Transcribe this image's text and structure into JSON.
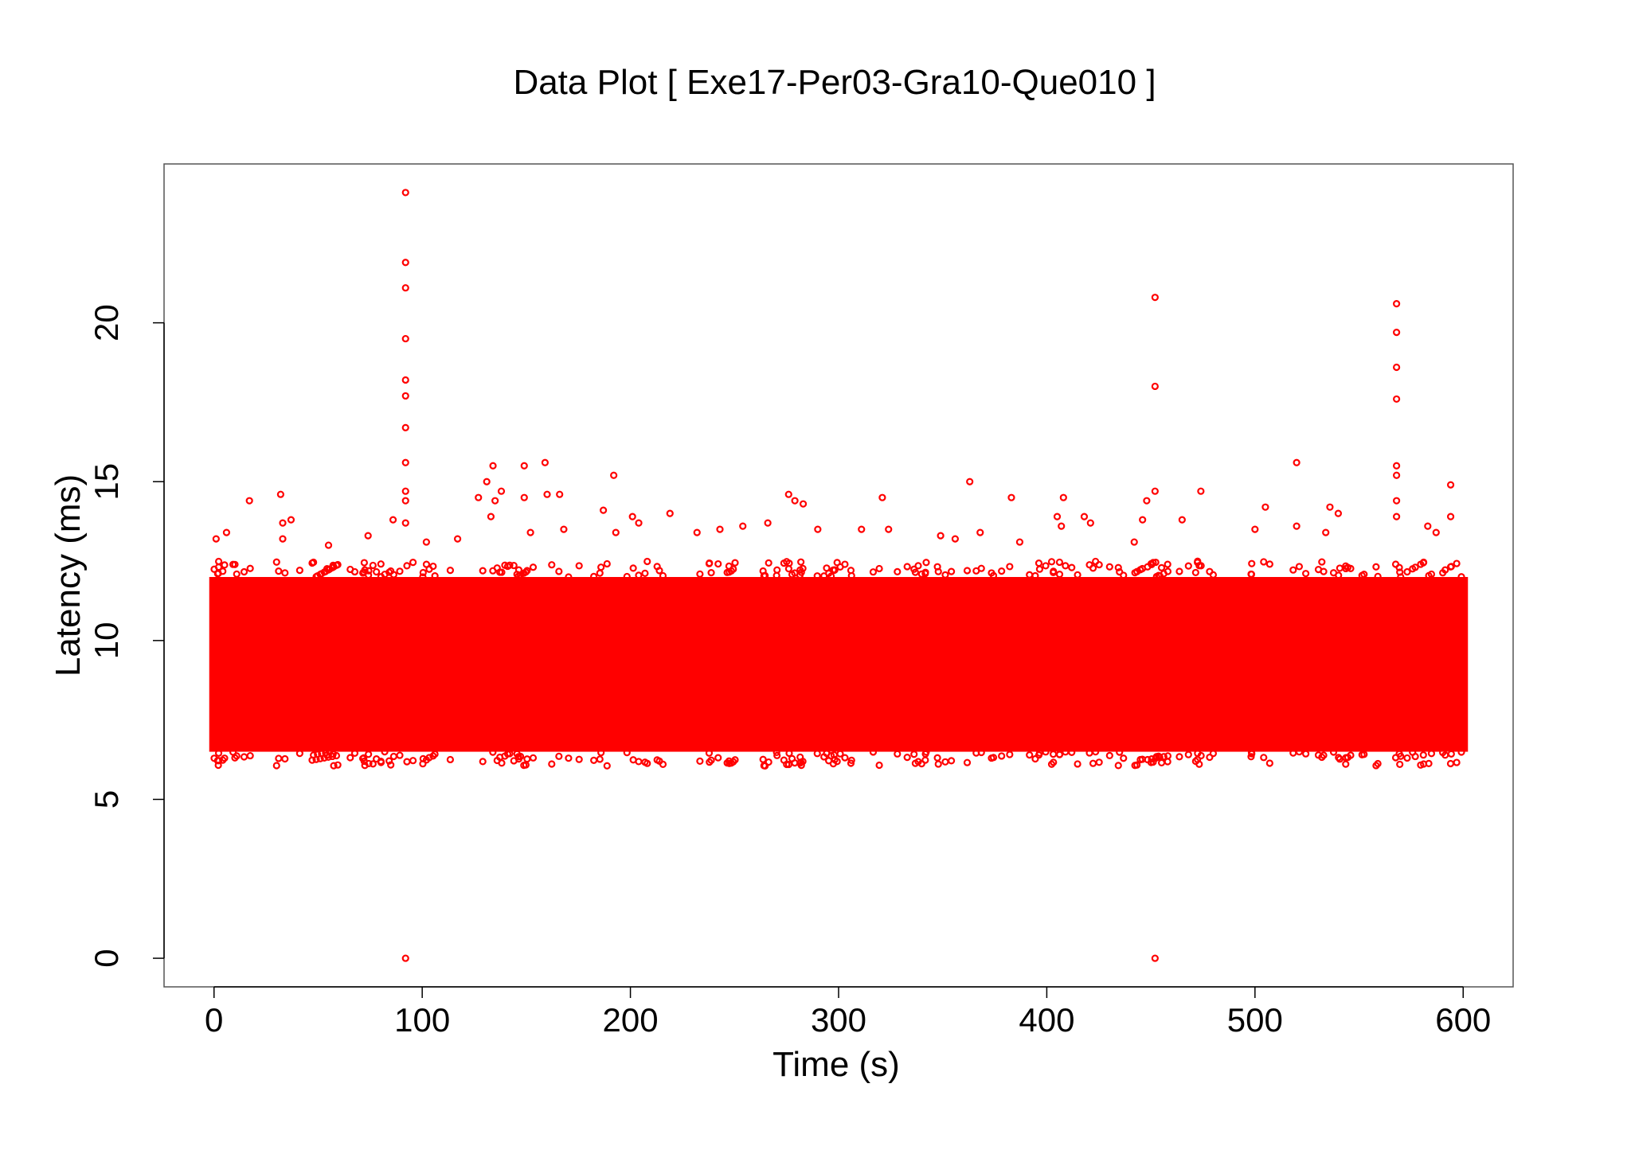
{
  "chart_data": {
    "type": "scatter",
    "title": "Data Plot [ Exe17-Per03-Gra10-Que010 ]",
    "xlabel": "Time (s)",
    "ylabel": "Latency (ms)",
    "xlim": [
      -24,
      624
    ],
    "ylim": [
      -0.9,
      25.0
    ],
    "xticks": [
      0,
      100,
      200,
      300,
      400,
      500,
      600
    ],
    "yticks": [
      0,
      5,
      10,
      15,
      20
    ],
    "xtick_labels": [
      "0",
      "100",
      "200",
      "300",
      "400",
      "500",
      "600"
    ],
    "ytick_labels": [
      "0",
      "5",
      "10",
      "15",
      "20"
    ],
    "grid": false,
    "legend": "none",
    "marker_color": "#ff0000",
    "dense_band": {
      "x_range": [
        0,
        600
      ],
      "y_range": [
        6.5,
        12.0
      ]
    },
    "series": [
      {
        "values": [
          {
            "x": 92,
            "y": 24.1
          },
          {
            "x": 92,
            "y": 21.9
          },
          {
            "x": 92,
            "y": 21.1
          },
          {
            "x": 92,
            "y": 19.5
          },
          {
            "x": 92,
            "y": 18.2
          },
          {
            "x": 92,
            "y": 17.7
          },
          {
            "x": 92,
            "y": 16.7
          },
          {
            "x": 92,
            "y": 15.6
          },
          {
            "x": 92,
            "y": 14.7
          },
          {
            "x": 92,
            "y": 14.4
          },
          {
            "x": 92,
            "y": 13.7
          },
          {
            "x": 92,
            "y": 0
          },
          {
            "x": 452,
            "y": 20.8
          },
          {
            "x": 452,
            "y": 18.0
          },
          {
            "x": 452,
            "y": 14.7
          },
          {
            "x": 452,
            "y": 0
          },
          {
            "x": 568,
            "y": 20.6
          },
          {
            "x": 568,
            "y": 19.7
          },
          {
            "x": 568,
            "y": 18.6
          },
          {
            "x": 568,
            "y": 17.6
          },
          {
            "x": 568,
            "y": 15.5
          },
          {
            "x": 568,
            "y": 15.2
          },
          {
            "x": 568,
            "y": 14.4
          },
          {
            "x": 568,
            "y": 13.9
          },
          {
            "x": 1,
            "y": 13.2
          },
          {
            "x": 6,
            "y": 13.4
          },
          {
            "x": 17,
            "y": 14.4
          },
          {
            "x": 32,
            "y": 14.6
          },
          {
            "x": 33,
            "y": 13.7
          },
          {
            "x": 37,
            "y": 13.8
          },
          {
            "x": 33,
            "y": 13.2
          },
          {
            "x": 55,
            "y": 13.0
          },
          {
            "x": 74,
            "y": 13.3
          },
          {
            "x": 86,
            "y": 13.8
          },
          {
            "x": 102,
            "y": 13.1
          },
          {
            "x": 117,
            "y": 13.2
          },
          {
            "x": 127,
            "y": 14.5
          },
          {
            "x": 131,
            "y": 15.0
          },
          {
            "x": 134,
            "y": 15.5
          },
          {
            "x": 135,
            "y": 14.4
          },
          {
            "x": 138,
            "y": 14.7
          },
          {
            "x": 133,
            "y": 13.9
          },
          {
            "x": 149,
            "y": 15.5
          },
          {
            "x": 149,
            "y": 14.5
          },
          {
            "x": 152,
            "y": 13.4
          },
          {
            "x": 159,
            "y": 15.6
          },
          {
            "x": 160,
            "y": 14.6
          },
          {
            "x": 166,
            "y": 14.6
          },
          {
            "x": 168,
            "y": 13.5
          },
          {
            "x": 187,
            "y": 14.1
          },
          {
            "x": 192,
            "y": 15.2
          },
          {
            "x": 193,
            "y": 13.4
          },
          {
            "x": 201,
            "y": 13.9
          },
          {
            "x": 204,
            "y": 13.7
          },
          {
            "x": 219,
            "y": 14.0
          },
          {
            "x": 232,
            "y": 13.4
          },
          {
            "x": 243,
            "y": 13.5
          },
          {
            "x": 254,
            "y": 13.6
          },
          {
            "x": 266,
            "y": 13.7
          },
          {
            "x": 276,
            "y": 14.6
          },
          {
            "x": 279,
            "y": 14.4
          },
          {
            "x": 283,
            "y": 14.3
          },
          {
            "x": 290,
            "y": 13.5
          },
          {
            "x": 311,
            "y": 13.5
          },
          {
            "x": 321,
            "y": 14.5
          },
          {
            "x": 324,
            "y": 13.5
          },
          {
            "x": 349,
            "y": 13.3
          },
          {
            "x": 356,
            "y": 13.2
          },
          {
            "x": 363,
            "y": 15.0
          },
          {
            "x": 368,
            "y": 13.4
          },
          {
            "x": 383,
            "y": 14.5
          },
          {
            "x": 387,
            "y": 13.1
          },
          {
            "x": 405,
            "y": 13.9
          },
          {
            "x": 408,
            "y": 14.5
          },
          {
            "x": 407,
            "y": 13.6
          },
          {
            "x": 418,
            "y": 13.9
          },
          {
            "x": 421,
            "y": 13.7
          },
          {
            "x": 442,
            "y": 13.1
          },
          {
            "x": 446,
            "y": 13.8
          },
          {
            "x": 448,
            "y": 14.4
          },
          {
            "x": 465,
            "y": 13.8
          },
          {
            "x": 474,
            "y": 14.7
          },
          {
            "x": 500,
            "y": 13.5
          },
          {
            "x": 505,
            "y": 14.2
          },
          {
            "x": 520,
            "y": 15.6
          },
          {
            "x": 520,
            "y": 13.6
          },
          {
            "x": 536,
            "y": 14.2
          },
          {
            "x": 540,
            "y": 14.0
          },
          {
            "x": 534,
            "y": 13.4
          },
          {
            "x": 583,
            "y": 13.6
          },
          {
            "x": 587,
            "y": 13.4
          },
          {
            "x": 594,
            "y": 14.9
          },
          {
            "x": 594,
            "y": 13.9
          }
        ]
      }
    ]
  }
}
